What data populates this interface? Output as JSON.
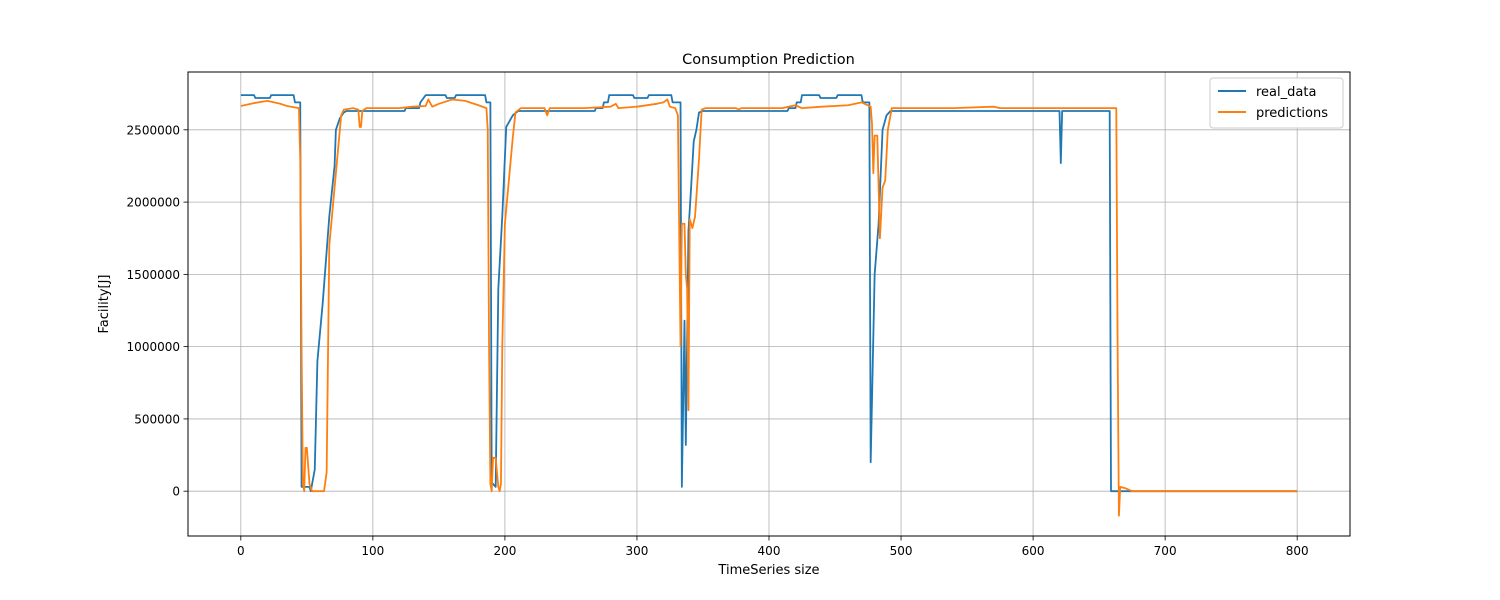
{
  "chart_data": {
    "type": "line",
    "title": "Consumption Prediction",
    "xlabel": "TimeSeries size",
    "ylabel": "Facility[J]",
    "xlim": [
      -40,
      840
    ],
    "ylim": [
      -310000,
      2900000
    ],
    "xticks": [
      0,
      100,
      200,
      300,
      400,
      500,
      600,
      700,
      800
    ],
    "xtick_labels": [
      "0",
      "100",
      "200",
      "300",
      "400",
      "500",
      "600",
      "700",
      "800"
    ],
    "yticks": [
      0,
      500000,
      1000000,
      1500000,
      2000000,
      2500000
    ],
    "ytick_labels": [
      "0",
      "500000",
      "1000000",
      "1500000",
      "2000000",
      "2500000"
    ],
    "grid": true,
    "legend": "top-right",
    "series": [
      {
        "name": "real_data",
        "color": "#1f77b4",
        "points": [
          [
            0,
            2740000
          ],
          [
            10,
            2740000
          ],
          [
            11,
            2720000
          ],
          [
            22,
            2720000
          ],
          [
            23,
            2740000
          ],
          [
            40,
            2740000
          ],
          [
            41,
            2690000
          ],
          [
            45,
            2690000
          ],
          [
            46,
            30000
          ],
          [
            52,
            30000
          ],
          [
            53,
            0
          ],
          [
            56,
            150000
          ],
          [
            58,
            900000
          ],
          [
            62,
            1300000
          ],
          [
            67,
            1900000
          ],
          [
            71,
            2250000
          ],
          [
            72,
            2500000
          ],
          [
            75,
            2580000
          ],
          [
            78,
            2620000
          ],
          [
            80,
            2630000
          ],
          [
            85,
            2630000
          ],
          [
            90,
            2630000
          ],
          [
            124,
            2630000
          ],
          [
            125,
            2650000
          ],
          [
            135,
            2650000
          ],
          [
            136,
            2690000
          ],
          [
            140,
            2740000
          ],
          [
            155,
            2740000
          ],
          [
            156,
            2720000
          ],
          [
            162,
            2720000
          ],
          [
            163,
            2740000
          ],
          [
            185,
            2740000
          ],
          [
            186,
            2690000
          ],
          [
            189,
            2690000
          ],
          [
            190,
            60000
          ],
          [
            193,
            30000
          ],
          [
            195,
            1400000
          ],
          [
            198,
            1900000
          ],
          [
            201,
            2520000
          ],
          [
            206,
            2600000
          ],
          [
            210,
            2630000
          ],
          [
            268,
            2630000
          ],
          [
            269,
            2650000
          ],
          [
            274,
            2650000
          ],
          [
            275,
            2690000
          ],
          [
            278,
            2690000
          ],
          [
            279,
            2740000
          ],
          [
            297,
            2740000
          ],
          [
            298,
            2720000
          ],
          [
            308,
            2720000
          ],
          [
            309,
            2740000
          ],
          [
            326,
            2740000
          ],
          [
            327,
            2690000
          ],
          [
            333,
            2690000
          ],
          [
            334,
            30000
          ],
          [
            336,
            1180000
          ],
          [
            337,
            320000
          ],
          [
            339,
            1800000
          ],
          [
            341,
            2100000
          ],
          [
            343,
            2420000
          ],
          [
            345,
            2500000
          ],
          [
            347,
            2620000
          ],
          [
            350,
            2630000
          ],
          [
            376,
            2630000
          ],
          [
            414,
            2630000
          ],
          [
            415,
            2650000
          ],
          [
            420,
            2650000
          ],
          [
            421,
            2690000
          ],
          [
            424,
            2690000
          ],
          [
            425,
            2740000
          ],
          [
            438,
            2740000
          ],
          [
            439,
            2720000
          ],
          [
            451,
            2720000
          ],
          [
            452,
            2740000
          ],
          [
            470,
            2740000
          ],
          [
            471,
            2690000
          ],
          [
            476,
            2690000
          ],
          [
            477,
            200000
          ],
          [
            480,
            1500000
          ],
          [
            483,
            1850000
          ],
          [
            486,
            2500000
          ],
          [
            489,
            2600000
          ],
          [
            492,
            2630000
          ],
          [
            620,
            2630000
          ],
          [
            621,
            2270000
          ],
          [
            622,
            2630000
          ],
          [
            658,
            2630000
          ],
          [
            659,
            0
          ],
          [
            700,
            0
          ],
          [
            800,
            0
          ]
        ]
      },
      {
        "name": "predictions",
        "color": "#ff7f0e",
        "points": [
          [
            0,
            2665000
          ],
          [
            10,
            2685000
          ],
          [
            20,
            2700000
          ],
          [
            30,
            2680000
          ],
          [
            35,
            2665000
          ],
          [
            44,
            2650000
          ],
          [
            45,
            2300000
          ],
          [
            46,
            1000000
          ],
          [
            47,
            50000
          ],
          [
            48,
            0
          ],
          [
            49,
            300000
          ],
          [
            50,
            300000
          ],
          [
            52,
            50000
          ],
          [
            54,
            0
          ],
          [
            63,
            0
          ],
          [
            65,
            130000
          ],
          [
            67,
            1700000
          ],
          [
            70,
            2000000
          ],
          [
            73,
            2300000
          ],
          [
            76,
            2600000
          ],
          [
            78,
            2640000
          ],
          [
            85,
            2650000
          ],
          [
            89,
            2640000
          ],
          [
            90,
            2520000
          ],
          [
            91,
            2520000
          ],
          [
            92,
            2630000
          ],
          [
            95,
            2650000
          ],
          [
            120,
            2650000
          ],
          [
            130,
            2660000
          ],
          [
            140,
            2665000
          ],
          [
            142,
            2710000
          ],
          [
            145,
            2660000
          ],
          [
            150,
            2680000
          ],
          [
            160,
            2710000
          ],
          [
            170,
            2700000
          ],
          [
            180,
            2670000
          ],
          [
            186,
            2650000
          ],
          [
            187,
            2500000
          ],
          [
            188,
            1000000
          ],
          [
            189,
            50000
          ],
          [
            190,
            0
          ],
          [
            191,
            230000
          ],
          [
            193,
            230000
          ],
          [
            195,
            30000
          ],
          [
            196,
            0
          ],
          [
            197,
            50000
          ],
          [
            198,
            1000000
          ],
          [
            200,
            1850000
          ],
          [
            203,
            2150000
          ],
          [
            206,
            2450000
          ],
          [
            208,
            2620000
          ],
          [
            212,
            2650000
          ],
          [
            230,
            2650000
          ],
          [
            232,
            2600000
          ],
          [
            234,
            2650000
          ],
          [
            260,
            2650000
          ],
          [
            280,
            2660000
          ],
          [
            284,
            2680000
          ],
          [
            286,
            2650000
          ],
          [
            300,
            2660000
          ],
          [
            315,
            2680000
          ],
          [
            320,
            2690000
          ],
          [
            323,
            2710000
          ],
          [
            325,
            2660000
          ],
          [
            329,
            2650000
          ],
          [
            331,
            2600000
          ],
          [
            333,
            1000000
          ],
          [
            334,
            1850000
          ],
          [
            336,
            1850000
          ],
          [
            337,
            1500000
          ],
          [
            338,
            1400000
          ],
          [
            339,
            560000
          ],
          [
            340,
            1880000
          ],
          [
            342,
            1820000
          ],
          [
            344,
            1900000
          ],
          [
            347,
            2300000
          ],
          [
            349,
            2640000
          ],
          [
            352,
            2650000
          ],
          [
            375,
            2650000
          ],
          [
            377,
            2640000
          ],
          [
            379,
            2650000
          ],
          [
            410,
            2650000
          ],
          [
            415,
            2660000
          ],
          [
            420,
            2670000
          ],
          [
            425,
            2650000
          ],
          [
            440,
            2660000
          ],
          [
            460,
            2670000
          ],
          [
            470,
            2690000
          ],
          [
            477,
            2660000
          ],
          [
            478,
            2540000
          ],
          [
            479,
            2200000
          ],
          [
            480,
            2460000
          ],
          [
            482,
            2460000
          ],
          [
            484,
            1750000
          ],
          [
            486,
            2100000
          ],
          [
            488,
            2150000
          ],
          [
            490,
            2500000
          ],
          [
            493,
            2650000
          ],
          [
            520,
            2650000
          ],
          [
            522,
            2650000
          ],
          [
            540,
            2650000
          ],
          [
            570,
            2660000
          ],
          [
            575,
            2650000
          ],
          [
            620,
            2650000
          ],
          [
            625,
            2650000
          ],
          [
            663,
            2650000
          ],
          [
            664,
            1000000
          ],
          [
            665,
            -170000
          ],
          [
            666,
            30000
          ],
          [
            670,
            20000
          ],
          [
            675,
            0
          ],
          [
            800,
            0
          ]
        ]
      }
    ]
  }
}
